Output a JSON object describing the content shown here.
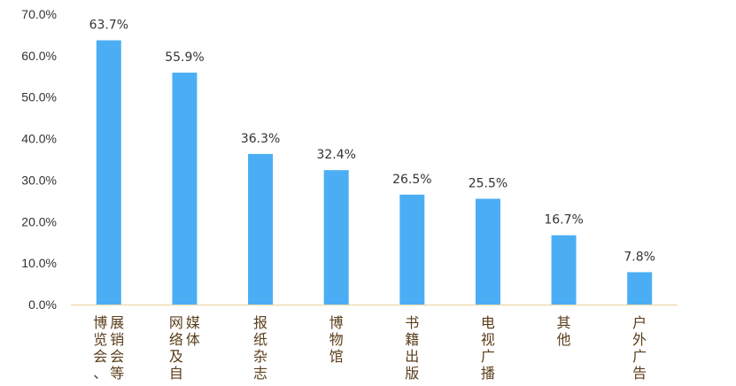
{
  "chart_data": {
    "type": "bar",
    "categories": [
      "展销会等博览会、",
      "网络及自媒体",
      "报纸杂志",
      "博物馆",
      "书籍出版",
      "电视广播",
      "其他",
      "户外广告"
    ],
    "category_lines": [
      [
        "展销会等",
        "博览会、"
      ],
      [
        "媒体",
        "网络及自"
      ],
      [
        "报纸杂志"
      ],
      [
        "博物馆"
      ],
      [
        "书籍出版"
      ],
      [
        "电视广播"
      ],
      [
        "其他"
      ],
      [
        "户外广告"
      ]
    ],
    "values": [
      63.7,
      55.9,
      36.3,
      32.4,
      26.5,
      25.5,
      16.7,
      7.8
    ],
    "data_labels": [
      "63.7%",
      "55.9%",
      "36.3%",
      "32.4%",
      "26.5%",
      "25.5%",
      "16.7%",
      "7.8%"
    ],
    "y_ticks": [
      "0.0%",
      "10.0%",
      "20.0%",
      "30.0%",
      "40.0%",
      "50.0%",
      "60.0%",
      "70.0%"
    ],
    "ylim": [
      0,
      70
    ],
    "title": "",
    "xlabel": "",
    "ylabel": "",
    "grid": false,
    "legend": "none",
    "bar_color": "#4baef5",
    "axis_color": "#f0dcb0"
  }
}
